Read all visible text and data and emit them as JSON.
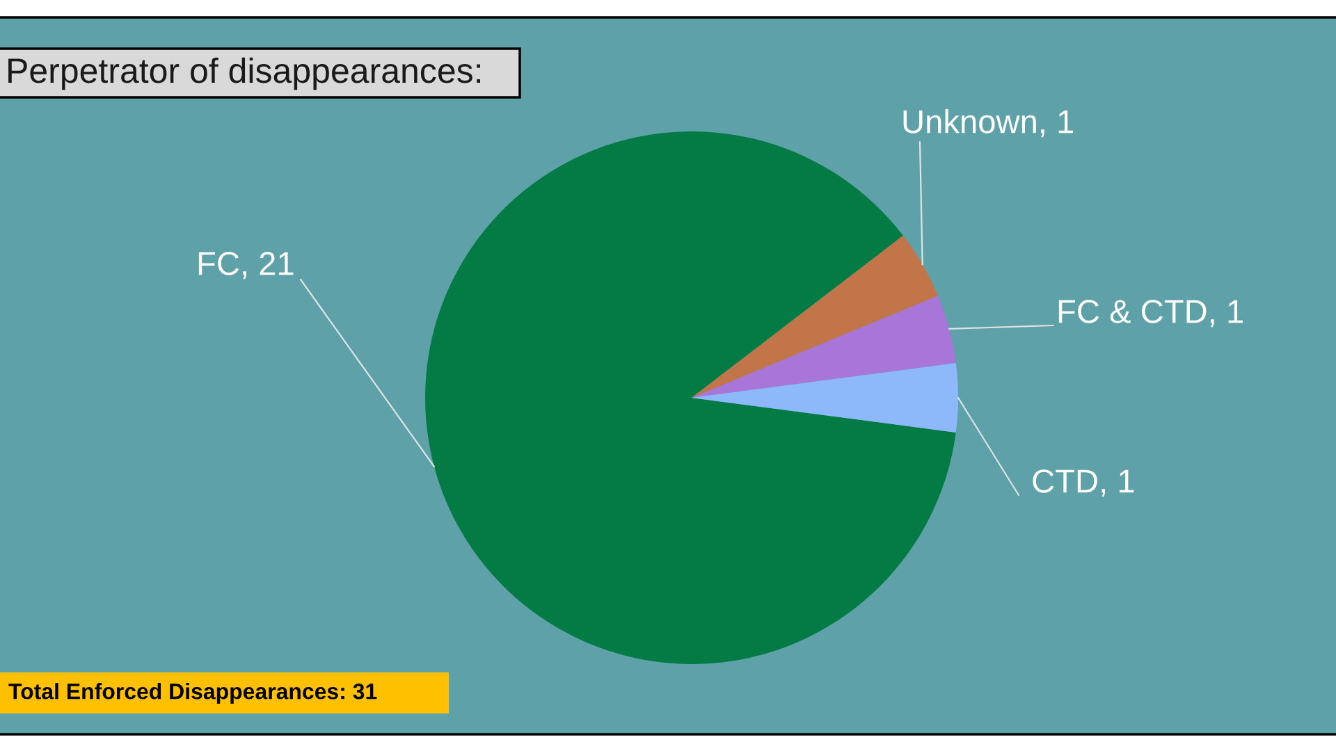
{
  "chart_data": {
    "type": "pie",
    "title": "Perpetrator of disappearances:",
    "categories": [
      "FC",
      "Unknown",
      "FC & CTD",
      "CTD"
    ],
    "values": [
      21,
      1,
      1,
      1
    ],
    "value_labels": [
      ", 21",
      ", 1",
      ", 1",
      ", 1"
    ],
    "colors": [
      "#047a45",
      "#c3754a",
      "#a876d8",
      "#8db8fa"
    ],
    "annotations": [
      "Total Enforced Disappearances: 31"
    ]
  }
}
